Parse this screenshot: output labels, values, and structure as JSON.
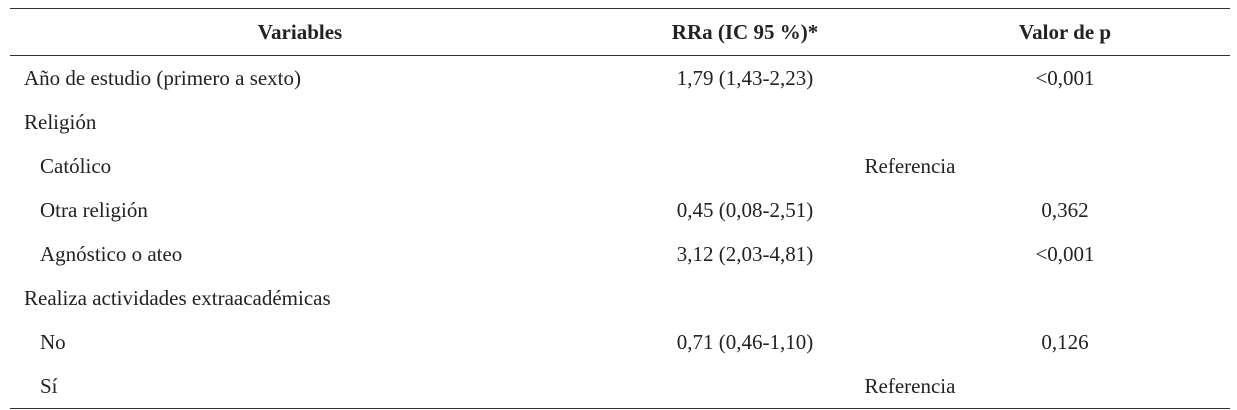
{
  "table": {
    "header": [
      "Variables",
      "RRa (IC 95 %)*",
      "Valor de p"
    ],
    "rows": [
      {
        "label": "Año de estudio (primero a sexto)",
        "level": 0,
        "rra": "1,79 (1,43-2,23)",
        "p": "<0,001"
      },
      {
        "label": "Religión",
        "level": 0
      },
      {
        "label": "Católico",
        "level": 1,
        "reference": "Referencia"
      },
      {
        "label": "Otra religión",
        "level": 1,
        "rra": "0,45 (0,08-2,51)",
        "p": "0,362"
      },
      {
        "label": "Agnóstico o ateo",
        "level": 1,
        "rra": "3,12 (2,03-4,81)",
        "p": "<0,001"
      },
      {
        "label": "Realiza actividades extraacadémicas",
        "level": 0
      },
      {
        "label": "No",
        "level": 1,
        "rra": "0,71 (0,46-1,10)",
        "p": "0,126"
      },
      {
        "label": "Sí",
        "level": 1,
        "reference": "Referencia"
      }
    ]
  }
}
